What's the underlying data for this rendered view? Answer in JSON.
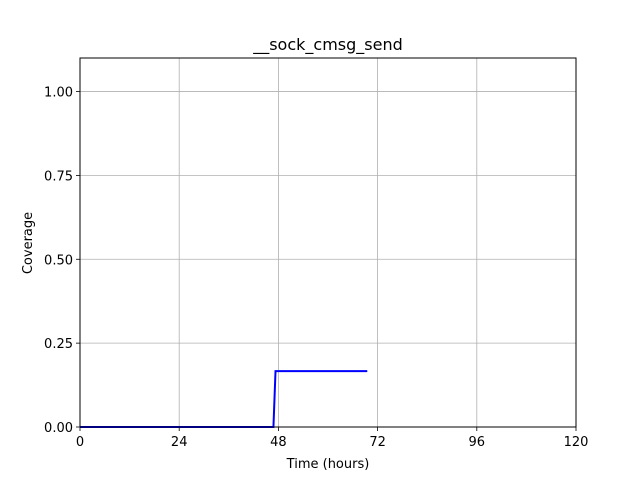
{
  "chart_data": {
    "type": "line",
    "title": "__sock_cmsg_send",
    "xlabel": "Time (hours)",
    "ylabel": "Coverage",
    "xlim": [
      0,
      120
    ],
    "ylim": [
      0,
      1.1
    ],
    "xticks": [
      0,
      24,
      48,
      72,
      96,
      120
    ],
    "yticks": [
      0.0,
      0.25,
      0.5,
      0.75,
      1.0
    ],
    "xtick_labels": [
      "0",
      "24",
      "48",
      "72",
      "96",
      "120"
    ],
    "ytick_labels": [
      "0.00",
      "0.25",
      "0.50",
      "0.75",
      "1.00"
    ],
    "grid": true,
    "series": [
      {
        "color": "#0000ff",
        "x": [
          0,
          46.8,
          47.3,
          69.5
        ],
        "y": [
          0,
          0,
          0.1667,
          0.1667
        ]
      }
    ]
  }
}
